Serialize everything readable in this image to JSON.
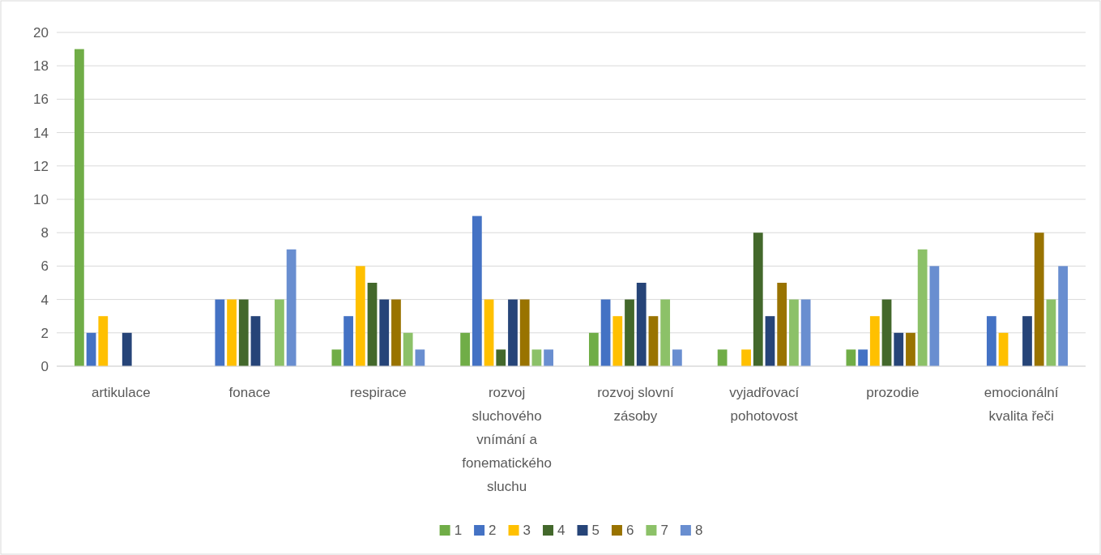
{
  "chart_data": {
    "type": "bar",
    "categories": [
      "artikulace",
      "fonace",
      "respirace",
      "rozvoj sluchového vnímání a fonematického sluchu",
      "rozvoj slovní zásoby",
      "vyjadřovací pohotovost",
      "prozodie",
      "emocionální kvalita řeči"
    ],
    "series": [
      {
        "name": "1",
        "color": "#70ad47",
        "values": [
          19,
          0,
          1,
          2,
          2,
          1,
          1,
          0
        ]
      },
      {
        "name": "2",
        "color": "#4472c4",
        "values": [
          2,
          4,
          3,
          9,
          4,
          0,
          1,
          3
        ]
      },
      {
        "name": "3",
        "color": "#ffc000",
        "values": [
          3,
          4,
          6,
          4,
          3,
          1,
          3,
          2
        ]
      },
      {
        "name": "4",
        "color": "#43682b",
        "values": [
          0,
          4,
          5,
          1,
          4,
          8,
          4,
          0
        ]
      },
      {
        "name": "5",
        "color": "#264478",
        "values": [
          2,
          3,
          4,
          4,
          5,
          3,
          2,
          3
        ]
      },
      {
        "name": "6",
        "color": "#997300",
        "values": [
          0,
          0,
          4,
          4,
          3,
          5,
          2,
          8
        ]
      },
      {
        "name": "7",
        "color": "#8cc168",
        "values": [
          0,
          4,
          2,
          1,
          4,
          4,
          7,
          4
        ]
      },
      {
        "name": "8",
        "color": "#698ed0",
        "values": [
          0,
          7,
          1,
          1,
          1,
          4,
          6,
          6
        ]
      }
    ],
    "ylim": [
      0,
      20
    ],
    "yticks": [
      0,
      2,
      4,
      6,
      8,
      10,
      12,
      14,
      16,
      18,
      20
    ],
    "grid": "y",
    "legend": "bottom"
  }
}
